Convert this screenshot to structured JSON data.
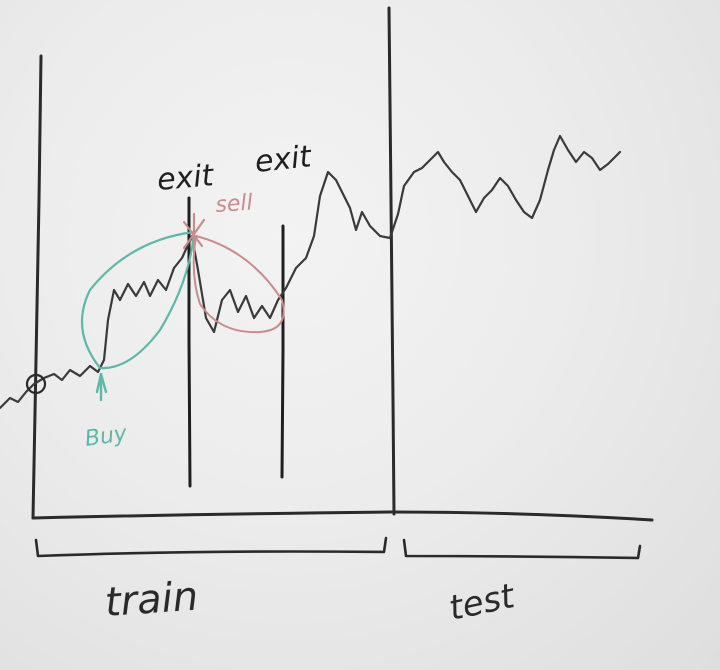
{
  "labels": {
    "exit_1": "exit",
    "exit_2": "exit",
    "sell": "sell",
    "buy": "Buy",
    "train": "train",
    "test": "test"
  },
  "colors": {
    "ink": "#2a2a2a",
    "price_line": "#3a3a3a",
    "buy_marker": "#5fb7a8",
    "sell_marker": "#c98c8c",
    "board": "#ececec"
  }
}
